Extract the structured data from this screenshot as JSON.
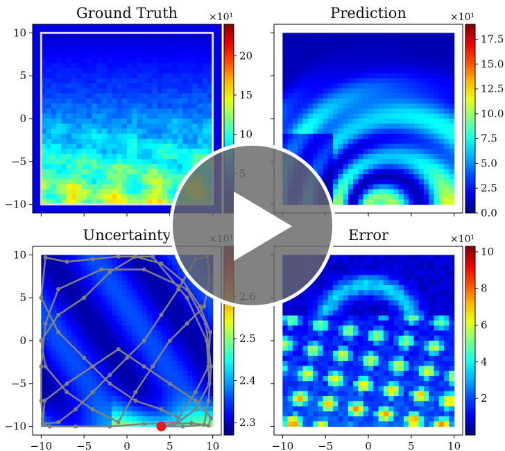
{
  "colors": {
    "colormap": "jet",
    "trajectory": "#808080",
    "start_marker": "#e41a1c",
    "play_overlay": "#666666"
  },
  "overlay": {
    "icon": "play-icon"
  },
  "chart_data": [
    {
      "type": "heatmap",
      "title": "Ground Truth",
      "xlim": [
        -11,
        11
      ],
      "ylim": [
        -11,
        11
      ],
      "x_ticks": [
        -10,
        -5,
        0,
        5,
        10
      ],
      "x_tick_labels_shown": false,
      "y_ticks": [
        -10,
        -5,
        0,
        5,
        10
      ],
      "colorbar": {
        "range": [
          0,
          24
        ],
        "ticks": [
          5,
          10,
          15,
          20
        ],
        "tick_labels": [
          "5",
          "10",
          "15",
          "20"
        ],
        "multiplier": "×10¹"
      },
      "region_rectangle": {
        "x": [
          -10,
          10
        ],
        "y": [
          -10,
          10
        ]
      }
    },
    {
      "type": "heatmap",
      "title": "Prediction",
      "xlim": [
        -11,
        11
      ],
      "ylim": [
        -11,
        11
      ],
      "x_ticks": [
        -10,
        -5,
        0,
        5,
        10
      ],
      "x_tick_labels_shown": false,
      "y_ticks": [
        -10,
        -5,
        0,
        5,
        10
      ],
      "y_tick_labels_shown": false,
      "colorbar": {
        "range": [
          0,
          19
        ],
        "ticks": [
          0,
          2.5,
          5,
          7.5,
          10,
          12.5,
          15,
          17.5
        ],
        "tick_labels": [
          "0.0",
          "2.5",
          "5.0",
          "7.5",
          "10.0",
          "12.5",
          "15.0",
          "17.5"
        ],
        "multiplier": "×10¹"
      }
    },
    {
      "type": "heatmap",
      "title": "Uncertainty",
      "xlim": [
        -11,
        11
      ],
      "ylim": [
        -11,
        11
      ],
      "x_ticks": [
        -10,
        -5,
        0,
        5,
        10
      ],
      "y_ticks": [
        -10,
        -5,
        0,
        5,
        10
      ],
      "colorbar": {
        "range": [
          2.27,
          2.72
        ],
        "ticks": [
          2.3,
          2.4,
          2.5,
          2.6
        ],
        "tick_labels": [
          "2.3",
          "2.4",
          "2.5",
          "2.6"
        ],
        "multiplier": "×10¹"
      },
      "trajectory": {
        "x": [
          4,
          6.5,
          9,
          9.5,
          9.8,
          9.2,
          7,
          2,
          -3,
          -8,
          -9.5,
          -10,
          -10,
          -9.8,
          -9,
          -6,
          -2,
          2,
          6,
          8,
          9.6,
          9.3,
          7,
          3,
          -1,
          -4,
          -7,
          -9.5,
          -10,
          -8,
          -5,
          -2,
          1,
          4,
          6,
          8,
          9.5,
          9.7,
          8.5,
          6.5,
          4,
          1,
          -2,
          -5,
          -8,
          -10,
          -9.5,
          -7,
          -4,
          -1,
          1,
          3,
          5,
          7,
          9,
          9.6,
          9.4,
          8,
          6,
          4,
          2,
          0,
          -2,
          -4,
          -6,
          -8,
          -9.8,
          -9.6,
          -7,
          -4,
          -1,
          2,
          5,
          8,
          9.8,
          9.5,
          7.5,
          5.5,
          4
        ],
        "y": [
          -10,
          -10,
          -9.8,
          -7,
          -3,
          2,
          6,
          8.3,
          8.3,
          6,
          2,
          -3,
          -7,
          -9.8,
          -10,
          -10,
          -10,
          -9.7,
          -9.5,
          -8,
          -5,
          0,
          5,
          9.8,
          9.8,
          9.5,
          9.2,
          9.7,
          5,
          1,
          -2,
          -5,
          -7,
          -8,
          -9,
          -6,
          -3,
          1,
          4,
          7,
          9,
          9.8,
          8,
          5,
          3,
          0,
          -3,
          -6,
          -8,
          -9.5,
          -6,
          -3,
          0,
          2,
          4,
          7,
          9.8,
          9.5,
          6,
          3,
          0,
          -2,
          -4,
          -6,
          -8,
          -9.5,
          -9.7,
          -7,
          -5,
          -3,
          -1,
          -3,
          -5,
          -7,
          -9,
          -9.9,
          -9.6,
          -9.7,
          -10
        ]
      },
      "start_marker": {
        "x": 4,
        "y": -10
      }
    },
    {
      "type": "heatmap",
      "title": "Error",
      "xlim": [
        -11,
        11
      ],
      "ylim": [
        -11,
        11
      ],
      "x_ticks": [
        -10,
        -5,
        0,
        5,
        10
      ],
      "y_ticks": [
        -10,
        -5,
        0,
        5,
        10
      ],
      "y_tick_labels_shown": false,
      "colorbar": {
        "range": [
          0,
          10.3
        ],
        "ticks": [
          2,
          4,
          6,
          8,
          10
        ],
        "tick_labels": [
          "2",
          "4",
          "6",
          "8",
          "10"
        ],
        "multiplier": "×10¹"
      }
    }
  ]
}
